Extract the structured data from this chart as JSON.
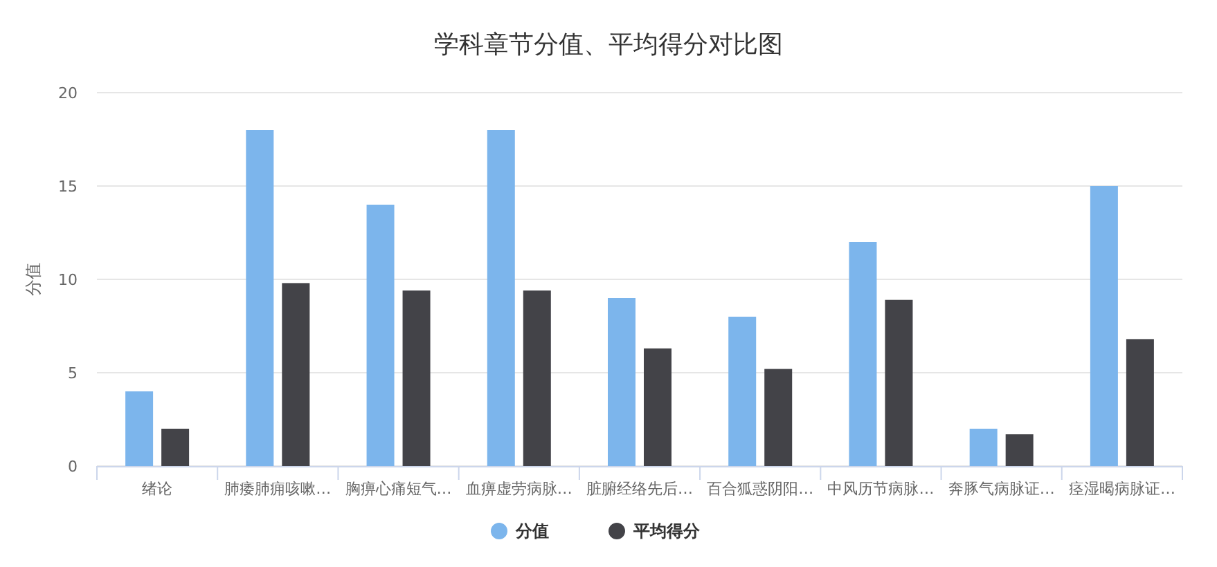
{
  "chart_data": {
    "type": "bar",
    "title": "学科章节分值、平均得分对比图",
    "ylabel": "分值",
    "categories": [
      "绪论",
      "肺痿肺痈咳嗽…",
      "胸痹心痛短气…",
      "血痹虚劳病脉…",
      "脏腑经络先后…",
      "百合狐惑阴阳…",
      "中风历节病脉…",
      "奔豚气病脉证…",
      "痉湿暍病脉证…"
    ],
    "series": [
      {
        "name": "分值",
        "color": "#7cb5ec",
        "values": [
          4,
          18,
          14,
          18,
          9,
          8,
          12,
          2,
          15
        ]
      },
      {
        "name": "平均得分",
        "color": "#434348",
        "values": [
          2.0,
          9.8,
          9.4,
          9.4,
          6.3,
          5.2,
          8.9,
          1.7,
          6.8
        ]
      }
    ],
    "ylim": [
      0,
      20
    ],
    "yticks": [
      0,
      5,
      10,
      15,
      20
    ],
    "grid": "y",
    "legend": "bottom"
  }
}
